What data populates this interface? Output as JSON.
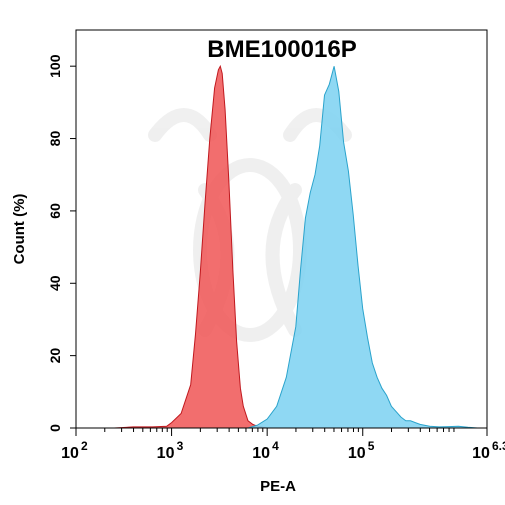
{
  "chart_data": {
    "type": "area",
    "title": "BME100016P",
    "xlabel": "PE-A",
    "ylabel": "Count  (%)",
    "x_scale": "log10",
    "xlim": [
      100,
      1995262
    ],
    "ylim": [
      0,
      110
    ],
    "x_ticks": [
      {
        "base": "10",
        "exp": "2",
        "value": 100
      },
      {
        "base": "10",
        "exp": "3",
        "value": 1000
      },
      {
        "base": "10",
        "exp": "4",
        "value": 10000
      },
      {
        "base": "10",
        "exp": "5",
        "value": 100000
      },
      {
        "base": "10",
        "exp": "6.3",
        "value": 1995262
      }
    ],
    "y_ticks": [
      0,
      20,
      40,
      60,
      80,
      100
    ],
    "series": [
      {
        "color": "#f05a5a",
        "stroke": "#c0181e",
        "points": [
          [
            158,
            0
          ],
          [
            251,
            0
          ],
          [
            398,
            0.3
          ],
          [
            631,
            0.3
          ],
          [
            891,
            0.5
          ],
          [
            1000,
            1.5
          ],
          [
            1259,
            4
          ],
          [
            1585,
            12
          ],
          [
            1778,
            26
          ],
          [
            1995,
            43
          ],
          [
            2239,
            62
          ],
          [
            2512,
            80
          ],
          [
            2818,
            94
          ],
          [
            3090,
            99
          ],
          [
            3236,
            100
          ],
          [
            3388,
            98
          ],
          [
            3631,
            88
          ],
          [
            3981,
            68
          ],
          [
            4365,
            44
          ],
          [
            4786,
            24
          ],
          [
            5248,
            11
          ],
          [
            5623,
            6
          ],
          [
            6310,
            2
          ],
          [
            7079,
            1
          ],
          [
            7943,
            0.5
          ],
          [
            10000,
            0
          ],
          [
            12589,
            0
          ]
        ]
      },
      {
        "color": "#7fd3f1",
        "stroke": "#2aa3cc",
        "points": [
          [
            6310,
            0
          ],
          [
            7943,
            0.8
          ],
          [
            10000,
            2.5
          ],
          [
            12589,
            6
          ],
          [
            15849,
            14
          ],
          [
            19953,
            28
          ],
          [
            22387,
            44
          ],
          [
            25119,
            58
          ],
          [
            28184,
            65
          ],
          [
            31623,
            70
          ],
          [
            35481,
            78
          ],
          [
            39811,
            92
          ],
          [
            44668,
            95
          ],
          [
            50119,
            100
          ],
          [
            56234,
            93
          ],
          [
            63096,
            79
          ],
          [
            70795,
            71
          ],
          [
            79433,
            59
          ],
          [
            89125,
            45
          ],
          [
            100000,
            33
          ],
          [
            112202,
            25
          ],
          [
            125893,
            18
          ],
          [
            141254,
            14
          ],
          [
            158489,
            11
          ],
          [
            177828,
            9
          ],
          [
            199526,
            6
          ],
          [
            223872,
            4.5
          ],
          [
            251189,
            3
          ],
          [
            281838,
            2
          ],
          [
            316228,
            2
          ],
          [
            354813,
            1.5
          ],
          [
            398107,
            1
          ],
          [
            501187,
            0.5
          ],
          [
            630957,
            0.3
          ],
          [
            794328,
            0.4
          ],
          [
            1000000,
            0.5
          ],
          [
            1258925,
            0.2
          ],
          [
            1584893,
            0
          ],
          [
            1995262,
            0
          ]
        ]
      }
    ],
    "legend": "none"
  }
}
